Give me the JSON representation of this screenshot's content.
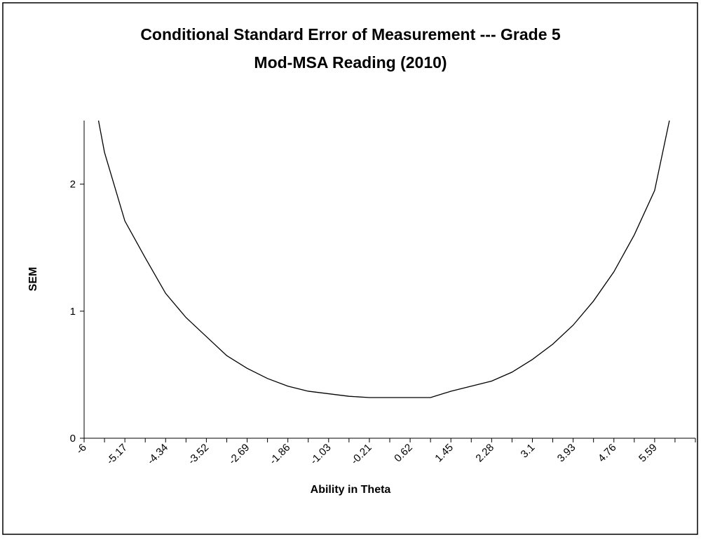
{
  "chart_data": {
    "type": "line",
    "title": "Conditional Standard Error of Measurement --- Grade 5",
    "subtitle": "Mod-MSA Reading (2010)",
    "x_label": "Ability in Theta",
    "y_label": "SEM",
    "categories": [
      "-6",
      null,
      "-5.17",
      null,
      "-4.34",
      null,
      "-3.52",
      null,
      "-2.69",
      null,
      "-1.86",
      null,
      "-1.03",
      null,
      "-0.21",
      null,
      "0.62",
      null,
      "1.45",
      null,
      "2.28",
      null,
      "3.1",
      null,
      "3.93",
      null,
      "4.76",
      null,
      "5.59",
      null,
      null
    ],
    "series": [
      {
        "name": "SEM",
        "color": "#000000",
        "values": [
          3.1,
          2.25,
          1.71,
          1.42,
          1.14,
          0.95,
          0.8,
          0.65,
          0.55,
          0.47,
          0.41,
          0.37,
          0.35,
          0.33,
          0.32,
          0.32,
          0.32,
          0.32,
          0.37,
          0.41,
          0.45,
          0.52,
          0.62,
          0.74,
          0.89,
          1.08,
          1.31,
          1.6,
          1.95,
          2.71,
          3.6
        ]
      }
    ],
    "ylim": [
      0,
      2.5
    ],
    "yticks": [
      0,
      1,
      2
    ]
  }
}
